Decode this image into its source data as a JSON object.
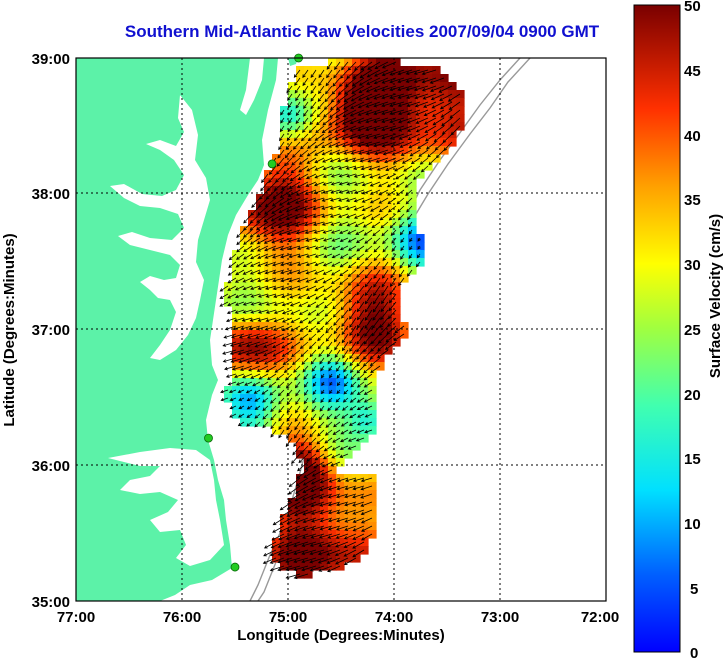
{
  "title": "Southern Mid-Atlantic Raw Velocities 2007/09/04 0900 GMT",
  "x_axis": {
    "label": "Longitude (Degrees:Minutes)",
    "ticks": [
      "77:00",
      "76:00",
      "75:00",
      "74:00",
      "73:00",
      "72:00"
    ]
  },
  "y_axis": {
    "label": "Latitude (Degrees:Minutes)",
    "ticks": [
      "39:00",
      "38:00",
      "37:00",
      "36:00",
      "35:00"
    ]
  },
  "colorbar": {
    "label": "Surface Velocity (cm/s)",
    "ticks": [
      "50",
      "45",
      "40",
      "35",
      "30",
      "25",
      "20",
      "15",
      "10",
      "5",
      "0"
    ],
    "min": 0,
    "max": 50
  },
  "colors": {
    "land": "#5cf2a8",
    "title": "#1010d0",
    "stations": "#22cc22"
  },
  "map": {
    "lon_range": [
      -77,
      -72
    ],
    "lat_range": [
      35,
      39
    ],
    "grid": true,
    "stations": [
      {
        "lon": -74.9,
        "lat": 39.0
      },
      {
        "lon": -75.15,
        "lat": 38.22
      },
      {
        "lon": -75.75,
        "lat": 36.2
      },
      {
        "lon": -75.5,
        "lat": 35.25
      }
    ]
  }
}
